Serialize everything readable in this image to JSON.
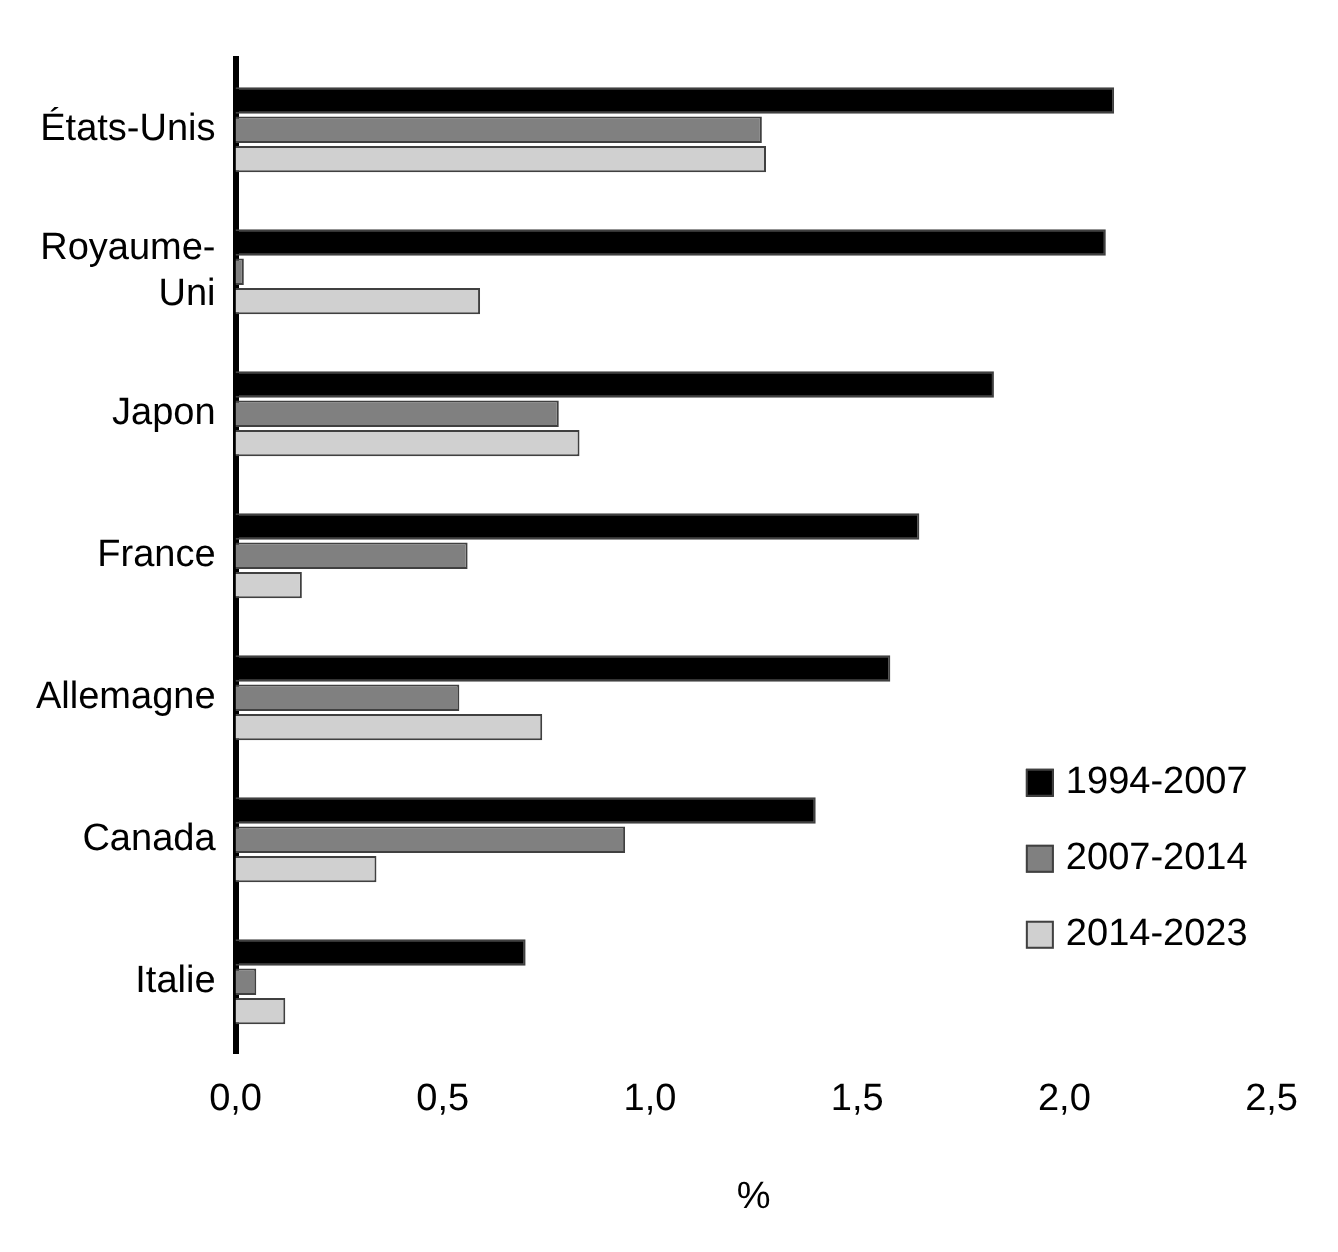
{
  "chart_data": {
    "type": "bar",
    "orientation": "horizontal",
    "categories": [
      "États-Unis",
      "Royaume-Uni",
      "Japon",
      "France",
      "Allemagne",
      "Canada",
      "Italie"
    ],
    "series": [
      {
        "name": "1994-2007",
        "color": "#000000",
        "values": [
          2.12,
          2.1,
          1.83,
          1.65,
          1.58,
          1.4,
          0.7
        ]
      },
      {
        "name": "2007-2014",
        "color": "#808080",
        "values": [
          1.27,
          0.02,
          0.78,
          0.56,
          0.54,
          0.94,
          0.05
        ]
      },
      {
        "name": "2014-2023",
        "color": "#d0d0d0",
        "values": [
          1.28,
          0.59,
          0.83,
          0.16,
          0.74,
          0.34,
          0.12
        ]
      }
    ],
    "xlim": [
      0,
      2.5
    ],
    "xticks": [
      {
        "value": 0,
        "label": "0,0"
      },
      {
        "value": 0.5,
        "label": "0,5"
      },
      {
        "value": 1,
        "label": "1,0"
      },
      {
        "value": 1.5,
        "label": "1,5"
      },
      {
        "value": 2,
        "label": "2,0"
      },
      {
        "value": 2.5,
        "label": "2,5"
      }
    ],
    "xlabel": "%",
    "grid": false,
    "legend": "bottom right"
  }
}
